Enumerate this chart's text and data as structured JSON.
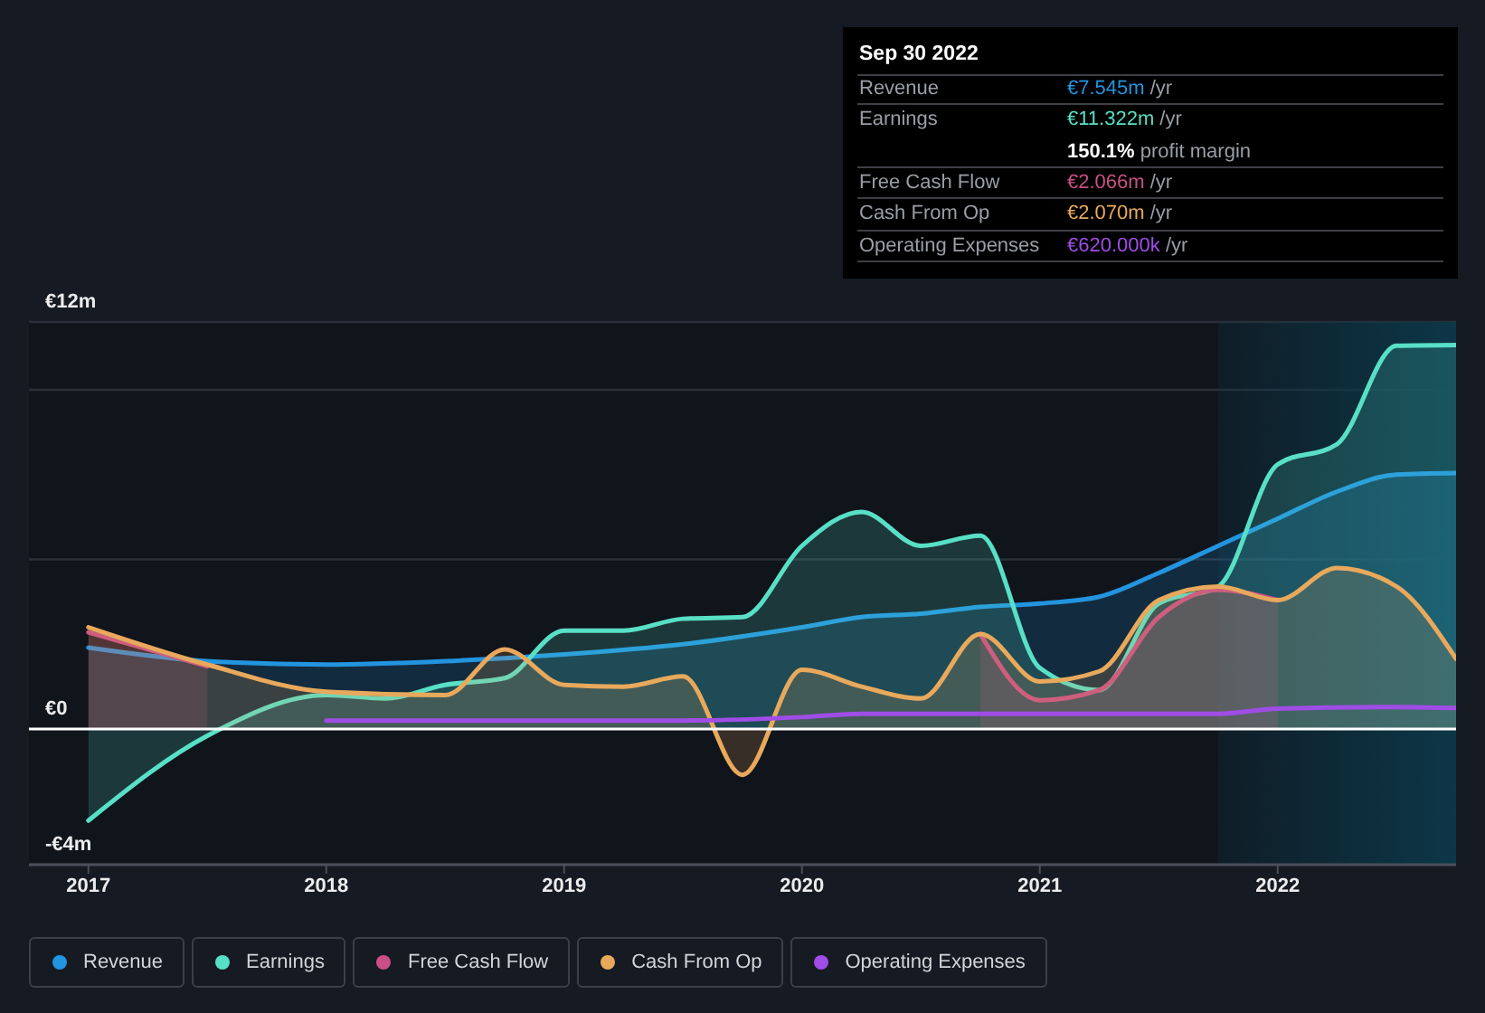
{
  "chart_data": {
    "type": "area",
    "series": [
      {
        "name": "Revenue",
        "color": "#2394df",
        "x": [
          2017,
          2017.5,
          2018,
          2018.5,
          2019,
          2019.5,
          2020,
          2020.25,
          2020.5,
          2020.75,
          2021,
          2021.25,
          2021.5,
          2021.75,
          2022,
          2022.25,
          2022.5,
          2022.75
        ],
        "values": [
          2.4,
          2.0,
          1.9,
          2.0,
          2.2,
          2.5,
          3.0,
          3.3,
          3.4,
          3.6,
          3.7,
          3.9,
          4.6,
          5.4,
          6.2,
          7.0,
          7.5,
          7.545
        ]
      },
      {
        "name": "Earnings",
        "color": "#58e0c6",
        "x": [
          2017,
          2017.5,
          2018,
          2018.25,
          2018.5,
          2018.75,
          2019,
          2019.25,
          2019.5,
          2019.75,
          2020,
          2020.25,
          2020.5,
          2020.75,
          2021,
          2021.25,
          2021.5,
          2021.75,
          2022,
          2022.25,
          2022.5,
          2022.75
        ],
        "values": [
          -2.7,
          -0.2,
          1.0,
          0.9,
          1.3,
          1.5,
          2.9,
          2.9,
          3.25,
          3.3,
          5.4,
          6.4,
          5.4,
          5.7,
          1.8,
          1.15,
          3.7,
          4.2,
          7.8,
          8.4,
          11.3,
          11.322
        ]
      },
      {
        "name": "Free Cash Flow",
        "color": "#c94f86",
        "x": [
          2017,
          2017.5,
          2019,
          2020.75,
          2021,
          2021.25,
          2021.5,
          2021.75,
          2022
        ],
        "values": [
          2.85,
          1.85,
          null,
          2.8,
          0.85,
          1.15,
          3.3,
          4.1,
          3.8
        ]
      },
      {
        "name": "Cash From Op",
        "color": "#e8a95c",
        "x": [
          2017,
          2017.5,
          2018,
          2018.5,
          2018.75,
          2019,
          2019.25,
          2019.5,
          2019.75,
          2020,
          2020.25,
          2020.5,
          2020.75,
          2021,
          2021.25,
          2021.5,
          2021.75,
          2022,
          2022.25,
          2022.5,
          2022.75
        ],
        "values": [
          3.0,
          1.9,
          1.1,
          1.0,
          2.35,
          1.3,
          1.25,
          1.55,
          -1.35,
          1.75,
          1.25,
          0.9,
          2.8,
          1.4,
          1.7,
          3.8,
          4.2,
          3.8,
          4.75,
          4.2,
          2.07
        ]
      },
      {
        "name": "Operating Expenses",
        "type": "line",
        "color": "#9f4de6",
        "x": [
          2018,
          2018.5,
          2019,
          2019.5,
          2020,
          2020.25,
          2020.75,
          2021,
          2021.5,
          2021.75,
          2022,
          2022.5,
          2022.75
        ],
        "values": [
          0.25,
          0.25,
          0.25,
          0.25,
          0.35,
          0.45,
          0.45,
          0.45,
          0.45,
          0.45,
          0.6,
          0.65,
          0.62
        ]
      }
    ],
    "xlim": [
      2016.75,
      2022.75
    ],
    "xticks": [
      2017,
      2018,
      2019,
      2020,
      2021,
      2022
    ],
    "ylim": [
      -4,
      12
    ],
    "yticks": [
      {
        "value": -4,
        "label": "-€4m"
      },
      {
        "value": 0,
        "label": "€0"
      },
      {
        "value": 5,
        "label": null
      },
      {
        "value": 10,
        "label": null
      },
      {
        "value": 12,
        "label": "€12m"
      }
    ],
    "grid": "y",
    "legend": "bottom",
    "ref_lines": [
      {
        "axis": "y",
        "value": 0,
        "color": "#ffffff"
      }
    ],
    "bands": [
      {
        "axis": "x",
        "from": 2021.75,
        "to": 2022.75,
        "color": "#0c3748"
      }
    ],
    "annotations": [
      "Sep 30 2022",
      "Revenue",
      "€7.545m /yr",
      "Earnings",
      "€11.322m /yr",
      "150.1% profit margin",
      "Free Cash Flow",
      "€2.066m /yr",
      "Cash From Op",
      "€2.070m /yr",
      "Operating Expenses",
      "€620.000k /yr"
    ]
  }
}
